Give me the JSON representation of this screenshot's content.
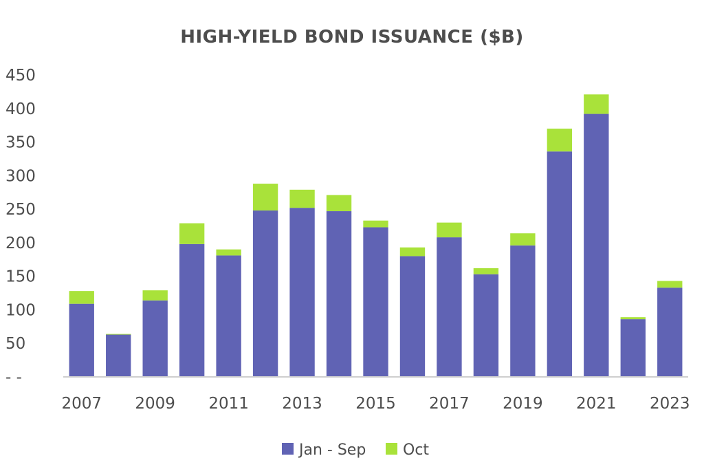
{
  "chart_data": {
    "type": "bar",
    "stacked": true,
    "title": "HIGH-YIELD BOND ISSUANCE ($B)",
    "xlabel": "",
    "ylabel": "",
    "categories": [
      "2007",
      "2008",
      "2009",
      "2010",
      "2011",
      "2012",
      "2013",
      "2014",
      "2015",
      "2016",
      "2017",
      "2018",
      "2019",
      "2020",
      "2021",
      "2022",
      "2023"
    ],
    "x_tick_labels": [
      "2007",
      "2009",
      "2011",
      "2013",
      "2015",
      "2017",
      "2019",
      "2021",
      "2023"
    ],
    "y_tick_labels": [
      "- -",
      "50",
      "100",
      "150",
      "200",
      "250",
      "300",
      "350",
      "400",
      "450"
    ],
    "ylim": [
      0,
      450
    ],
    "grid": false,
    "legend_position": "bottom",
    "series": [
      {
        "name": "Jan - Sep",
        "color": "#6063b4",
        "values": [
          109,
          63,
          114,
          198,
          181,
          248,
          252,
          247,
          223,
          180,
          208,
          153,
          196,
          336,
          392,
          86,
          133
        ]
      },
      {
        "name": "Oct",
        "color": "#a9e23a",
        "values": [
          19,
          1,
          15,
          31,
          9,
          40,
          27,
          24,
          10,
          13,
          22,
          9,
          18,
          34,
          29,
          3,
          10
        ]
      }
    ]
  }
}
